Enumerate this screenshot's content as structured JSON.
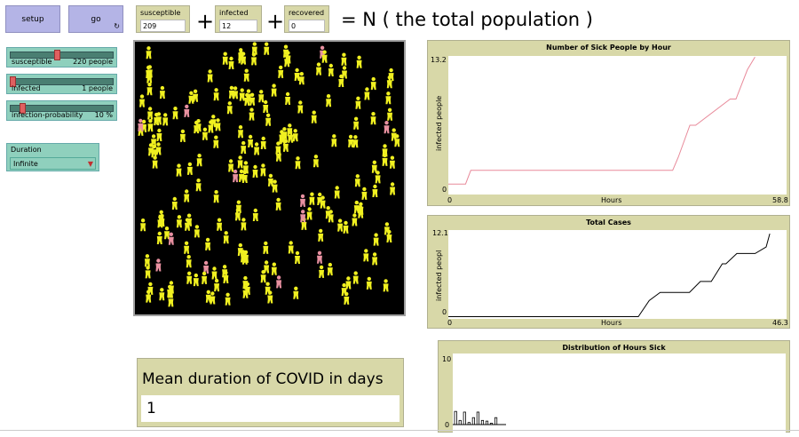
{
  "buttons": {
    "setup": "setup",
    "go": "go",
    "forever_icon": "↻"
  },
  "monitors": [
    {
      "label": "susceptible",
      "value": "209"
    },
    {
      "label": "infected",
      "value": "12"
    },
    {
      "label": "recovered",
      "value": "0"
    }
  ],
  "operators": {
    "plus1": "+",
    "plus2": "+"
  },
  "equation": "= N ( the total population )",
  "sliders": [
    {
      "name": "susceptible",
      "value": "220 people",
      "fraction": 0.45
    },
    {
      "name": "infected",
      "value": "1 people",
      "fraction": 0.0
    },
    {
      "name": "infection-probability",
      "value": "10 %",
      "fraction": 0.1
    }
  ],
  "chooser": {
    "name": "Duration",
    "selected": "Infinite",
    "arrow_icon": "down-triangle-icon"
  },
  "world": {
    "susceptible_color": "#f0f020",
    "infected_color": "#e890a0",
    "background": "#000000"
  },
  "plots": {
    "sick": {
      "title": "Number of Sick People by Hour",
      "ylabel": "infected people",
      "xlabel": "Hours",
      "ymax_label": "13.2",
      "ymin_label": "0",
      "xmin_label": "0",
      "xmax_label": "58.8",
      "color": "#e88a9a"
    },
    "total": {
      "title": "Total Cases",
      "ylabel": "infected peopl",
      "xlabel": "Hours",
      "ymax_label": "12.1",
      "ymin_label": "0",
      "xmin_label": "0",
      "xmax_label": "46.3",
      "color": "#000000"
    },
    "dist": {
      "title": "Distribution of Hours Sick",
      "ymax_label": "10",
      "ymin_label": "0",
      "color": "#000000"
    }
  },
  "chart_data": [
    {
      "type": "line",
      "title": "Number of Sick People by Hour",
      "xlabel": "Hours",
      "ylabel": "infected people",
      "xlim": [
        0,
        58.8
      ],
      "ylim": [
        0,
        13.2
      ],
      "series": [
        {
          "x": [
            0,
            3,
            3.9,
            39,
            40,
            42,
            43,
            49,
            50,
            52,
            53.3
          ],
          "y": [
            1,
            1,
            2.3,
            2.3,
            3.6,
            6.6,
            6.6,
            9.1,
            9.1,
            11.9,
            13.1
          ]
        }
      ]
    },
    {
      "type": "line",
      "title": "Total Cases",
      "xlabel": "Hours",
      "ylabel": "infected peopl",
      "xlim": [
        0,
        46.3
      ],
      "ylim": [
        0,
        12.1
      ],
      "series": [
        {
          "x": [
            0,
            26,
            27.5,
            29,
            33,
            34.5,
            36,
            37.5,
            38,
            39.5,
            42,
            43.5,
            44
          ],
          "y": [
            0.3,
            0.3,
            2.5,
            3.6,
            3.6,
            5.1,
            5.1,
            7.5,
            7.5,
            8.9,
            8.9,
            9.8,
            11.6
          ]
        }
      ]
    },
    {
      "type": "bar",
      "title": "Distribution of Hours Sick",
      "ylim": [
        0,
        10
      ],
      "x": [
        1,
        2,
        3,
        4,
        5,
        6,
        7,
        8,
        9,
        10
      ],
      "values": [
        1.9,
        0.6,
        1.8,
        0.3,
        1.0,
        1.8,
        0.6,
        0.5,
        0.2,
        1.0
      ]
    }
  ],
  "output": {
    "label": "Mean duration of COVID in days",
    "value": "1"
  }
}
